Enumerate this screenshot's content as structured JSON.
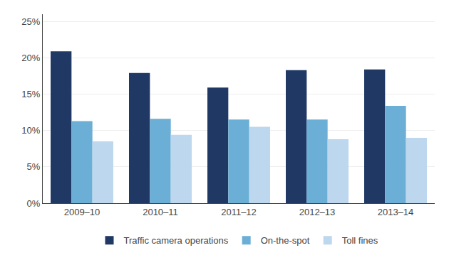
{
  "chart_data": {
    "type": "bar",
    "categories": [
      "2009–10",
      "2010–11",
      "2011–12",
      "2012–13",
      "2013–14"
    ],
    "series": [
      {
        "name": "Traffic camera operations",
        "color": "#1f3864",
        "values": [
          0.209,
          0.179,
          0.159,
          0.183,
          0.184
        ]
      },
      {
        "name": "On-the-spot",
        "color": "#6baed6",
        "values": [
          0.113,
          0.116,
          0.115,
          0.115,
          0.134
        ]
      },
      {
        "name": "Toll fines",
        "color": "#bdd7ee",
        "values": [
          0.085,
          0.094,
          0.105,
          0.088,
          0.09
        ]
      }
    ],
    "ylim": [
      0,
      0.26
    ],
    "yticks": [
      {
        "value": 0,
        "label": "0%"
      },
      {
        "value": 0.05,
        "label": "5%"
      },
      {
        "value": 0.1,
        "label": "10%"
      },
      {
        "value": 0.15,
        "label": "15%"
      },
      {
        "value": 0.2,
        "label": "20%"
      },
      {
        "value": 0.25,
        "label": "25%"
      }
    ],
    "grid": true,
    "legend": "bottom"
  }
}
